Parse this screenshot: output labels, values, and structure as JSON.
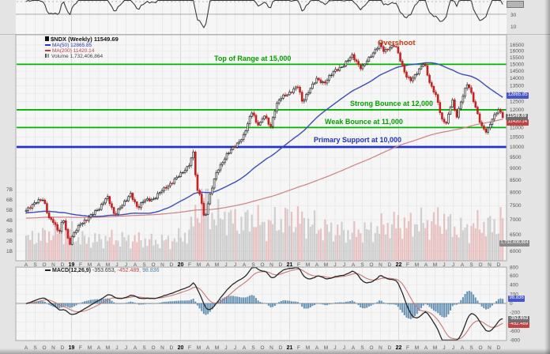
{
  "legend": {
    "symbol": "$NDX (Weekly) 11549.69",
    "ma50": "MA(50) 12865.85",
    "ma200": "MA(200) 11420.14",
    "volume": "Volume 1,732,406,864"
  },
  "macd_legend": {
    "label": "MACD(12,26,9)",
    "v1": "-353.653,",
    "v2": "-452.489,",
    "v3": "98.836"
  },
  "boxes": {
    "last": "11549.69",
    "ma50": "12865.85",
    "ma200": "11420.14",
    "volume": "1,732,406,864",
    "macd_hist": "98.836",
    "macd": "-353.653",
    "signal": "-452.489"
  },
  "top_strip": {
    "tick30": "30",
    "tick10": "10"
  },
  "axes": {
    "price_ticks": [
      "16500",
      "16000",
      "15500",
      "15000",
      "14500",
      "14000",
      "13500",
      "13000",
      "12500",
      "12000",
      "11500",
      "11000",
      "10500",
      "10000",
      "9500",
      "9000",
      "8500",
      "8000",
      "7500",
      "7000",
      "6500",
      "6000"
    ],
    "volume_ticks": [
      "7B",
      "6B",
      "5B",
      "4B",
      "3B",
      "2B",
      "1B"
    ],
    "macd_ticks": [
      "800",
      "600",
      "400",
      "200",
      "0",
      "-200",
      "-400",
      "-600",
      "-800"
    ],
    "months": [
      "A",
      "S",
      "O",
      "N",
      "D",
      "19",
      "F",
      "M",
      "A",
      "M",
      "J",
      "J",
      "A",
      "S",
      "O",
      "N",
      "D",
      "20",
      "F",
      "M",
      "A",
      "M",
      "J",
      "J",
      "A",
      "S",
      "O",
      "N",
      "D",
      "21",
      "F",
      "M",
      "A",
      "M",
      "J",
      "J",
      "A",
      "S",
      "O",
      "N",
      "D",
      "22",
      "F",
      "M",
      "A",
      "M",
      "J",
      "J",
      "A",
      "S",
      "O",
      "N",
      "D"
    ],
    "year_indices": [
      5,
      17,
      29,
      41
    ]
  },
  "chart_data": {
    "type": "candlestick",
    "symbol": "$NDX",
    "timeframe": "Weekly",
    "last_close": 11549.69,
    "ma50": 12865.85,
    "ma200": 11420.14,
    "volume": 1732406864,
    "price_scale": "log",
    "price_axis_range": [
      6000,
      16500
    ],
    "x_range": [
      "Aug 2018",
      "Dec 2022"
    ],
    "overshoot_label": "Overshoot",
    "levels": [
      {
        "label": "Top of Range at 15,000",
        "value": 15000,
        "color": "#00b300"
      },
      {
        "label": "Strong Bounce at 12,000",
        "value": 12000,
        "color": "#00b300"
      },
      {
        "label": "Weak Bounce at 11,000",
        "value": 11000,
        "color": "#00b300"
      },
      {
        "label": "Primary Support at 10,000",
        "value": 10000,
        "color": "#2233cc"
      }
    ],
    "macd": {
      "label": "MACD(12,26,9)",
      "macd": -353.653,
      "signal": -452.489,
      "histogram": 98.836
    },
    "monthly_close_anchors": [
      [
        0,
        7300
      ],
      [
        1,
        7650
      ],
      [
        1.9,
        7700
      ],
      [
        2.5,
        7080
      ],
      [
        3,
        6950
      ],
      [
        3.6,
        6530
      ],
      [
        4.1,
        7050
      ],
      [
        4.75,
        6190
      ],
      [
        5.1,
        6450
      ],
      [
        6,
        6870
      ],
      [
        7,
        7100
      ],
      [
        8,
        7380
      ],
      [
        8.9,
        7850
      ],
      [
        9.7,
        7160
      ],
      [
        10.3,
        7440
      ],
      [
        11,
        7670
      ],
      [
        11.5,
        7930
      ],
      [
        12.3,
        7420
      ],
      [
        13,
        7690
      ],
      [
        14,
        7750
      ],
      [
        15,
        8080
      ],
      [
        16,
        8400
      ],
      [
        17,
        8730
      ],
      [
        17.9,
        9150
      ],
      [
        18.4,
        9720
      ],
      [
        18.8,
        8040
      ],
      [
        19.2,
        7900
      ],
      [
        19.62,
        6994
      ],
      [
        20.1,
        7700
      ],
      [
        21,
        8890
      ],
      [
        22,
        9560
      ],
      [
        23,
        10060
      ],
      [
        24,
        10590
      ],
      [
        24.9,
        11980
      ],
      [
        25.3,
        11300
      ],
      [
        25.7,
        11150
      ],
      [
        26.2,
        11660
      ],
      [
        26.9,
        11050
      ],
      [
        27.5,
        12260
      ],
      [
        28,
        12690
      ],
      [
        29,
        13070
      ],
      [
        29.9,
        13450
      ],
      [
        30.4,
        12460
      ],
      [
        31,
        13090
      ],
      [
        32,
        13940
      ],
      [
        32.8,
        13690
      ],
      [
        34,
        14550
      ],
      [
        35,
        14960
      ],
      [
        35.9,
        15650
      ],
      [
        36.9,
        14690
      ],
      [
        37.6,
        15300
      ],
      [
        38.9,
        16600
      ],
      [
        39.4,
        15900
      ],
      [
        40,
        16320
      ],
      [
        40.6,
        16550
      ],
      [
        41.3,
        15000
      ],
      [
        41.8,
        14200
      ],
      [
        42.4,
        13900
      ],
      [
        43.1,
        14400
      ],
      [
        43.8,
        15200
      ],
      [
        44.5,
        13500
      ],
      [
        45.1,
        12850
      ],
      [
        45.8,
        11400
      ],
      [
        46.3,
        11270
      ],
      [
        46.9,
        12640
      ],
      [
        47.3,
        11500
      ],
      [
        48.1,
        12950
      ],
      [
        48.6,
        13650
      ],
      [
        49.4,
        12270
      ],
      [
        50.1,
        11060
      ],
      [
        50.7,
        10700
      ],
      [
        51.2,
        11410
      ],
      [
        51.9,
        12030
      ],
      [
        52.3,
        11750
      ],
      [
        52.6,
        11549.69
      ]
    ],
    "volume_anchors_billions": [
      [
        0,
        2.1
      ],
      [
        2,
        2.5
      ],
      [
        3,
        2.8
      ],
      [
        4,
        3.0
      ],
      [
        4.8,
        3.1
      ],
      [
        5.5,
        2.3
      ],
      [
        7,
        2.0
      ],
      [
        9,
        2.2
      ],
      [
        10,
        2.1
      ],
      [
        12,
        2.1
      ],
      [
        14,
        1.9
      ],
      [
        16,
        2.0
      ],
      [
        17,
        2.3
      ],
      [
        18,
        2.8
      ],
      [
        19,
        5.5
      ],
      [
        19.6,
        6.8
      ],
      [
        20.2,
        5.0
      ],
      [
        21,
        4.1
      ],
      [
        22,
        4.5
      ],
      [
        23,
        3.8
      ],
      [
        24,
        3.7
      ],
      [
        25,
        4.3
      ],
      [
        26,
        3.5
      ],
      [
        27,
        3.7
      ],
      [
        28,
        3.8
      ],
      [
        29,
        4.2
      ],
      [
        30,
        4.0
      ],
      [
        31,
        3.8
      ],
      [
        32,
        3.3
      ],
      [
        33,
        3.1
      ],
      [
        34,
        3.0
      ],
      [
        35,
        2.8
      ],
      [
        36,
        2.7
      ],
      [
        37,
        3.0
      ],
      [
        38,
        2.9
      ],
      [
        39,
        3.3
      ],
      [
        40,
        3.4
      ],
      [
        41,
        3.7
      ],
      [
        42,
        3.4
      ],
      [
        43,
        3.8
      ],
      [
        44,
        3.5
      ],
      [
        45,
        3.9
      ],
      [
        46,
        4.0
      ],
      [
        47,
        3.2
      ],
      [
        48,
        3.0
      ],
      [
        49,
        3.3
      ],
      [
        50,
        3.6
      ],
      [
        51,
        3.4
      ],
      [
        52,
        3.6
      ],
      [
        52.4,
        4.3
      ],
      [
        52.6,
        5.0
      ]
    ],
    "colors": {
      "up_candle": "#2a2a2a",
      "down_candle": "#c22222",
      "ma50_line": "#3b4cc0",
      "ma200_line": "#d08080",
      "macd_line": "#222222",
      "signal_line": "#c87878",
      "histogram": "#4a7fa8",
      "green_level": "#00b300",
      "blue_level": "#2233cc",
      "vol_up": "#b5b5b5",
      "vol_down": "#e0a0a0"
    }
  }
}
